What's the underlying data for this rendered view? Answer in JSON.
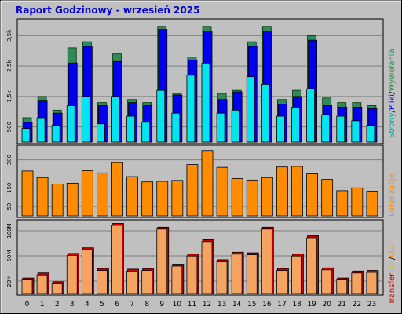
{
  "title": "Raport Godzinowy -  wrzesień 2025",
  "colors": {
    "background": "#c0c0c0",
    "panel": "#c0c0c0",
    "grid": "#808080",
    "strony": "#2e8b57",
    "pliki": "#0000ee",
    "wywolania": "#00e5ee",
    "lokalizacje": "#ff8c00",
    "transfer": "#ff7f00",
    "transfer_dark": "#cc0000"
  },
  "side_labels": {
    "top": [
      {
        "text": "Strony",
        "color": "#00aaaa"
      },
      {
        "text": "/",
        "color": "#000000"
      },
      {
        "text": "Pliki",
        "color": "#0000ee"
      },
      {
        "text": "/",
        "color": "#000000"
      },
      {
        "text": "Wywołania",
        "color": "#2e8b57"
      }
    ],
    "middle": [
      {
        "text": "Lokalizacje",
        "color": "#ff8c00"
      }
    ],
    "bottom": [
      {
        "text": "Transfer",
        "color": "#cc0000"
      },
      {
        "text": " IN ",
        "color": "#cccc00"
      },
      {
        "text": "/",
        "color": "#000000"
      },
      {
        "text": "OUT",
        "color": "#ff8c00"
      }
    ]
  },
  "chart_data": [
    {
      "type": "bar",
      "panel": "requests",
      "categories": [
        "0",
        "1",
        "2",
        "3",
        "4",
        "5",
        "6",
        "7",
        "8",
        "9",
        "10",
        "11",
        "12",
        "13",
        "14",
        "15",
        "16",
        "17",
        "18",
        "19",
        "20",
        "21",
        "22",
        "23"
      ],
      "y_ticks": [
        "500",
        "1,5k",
        "2,5k",
        "3,5k"
      ],
      "y_tick_values": [
        500,
        1500,
        2500,
        3500
      ],
      "ylim": [
        0,
        4000
      ],
      "series": [
        {
          "name": "Wywołania",
          "values": [
            800,
            1500,
            1050,
            3100,
            3300,
            1300,
            2900,
            1400,
            1300,
            3800,
            1600,
            2800,
            3800,
            1600,
            1700,
            3300,
            3800,
            1400,
            1700,
            3500,
            1450,
            1300,
            1300,
            1200
          ]
        },
        {
          "name": "Pliki",
          "values": [
            650,
            1350,
            950,
            2600,
            3150,
            1200,
            2650,
            1300,
            1200,
            3700,
            1550,
            2700,
            3650,
            1400,
            1650,
            3150,
            3650,
            1250,
            1500,
            3350,
            1200,
            1150,
            1150,
            1100
          ]
        },
        {
          "name": "Strony",
          "values": [
            450,
            800,
            550,
            1200,
            1500,
            600,
            1500,
            850,
            650,
            1700,
            950,
            2200,
            2600,
            950,
            1050,
            2150,
            1900,
            850,
            1150,
            1750,
            900,
            850,
            700,
            550
          ]
        }
      ]
    },
    {
      "type": "bar",
      "panel": "locations",
      "categories": [
        "0",
        "1",
        "2",
        "3",
        "4",
        "5",
        "6",
        "7",
        "8",
        "9",
        "10",
        "11",
        "12",
        "13",
        "14",
        "15",
        "16",
        "17",
        "18",
        "19",
        "20",
        "21",
        "22",
        "23"
      ],
      "y_ticks": [
        "50",
        "150",
        "300"
      ],
      "y_tick_values": [
        50,
        150,
        300
      ],
      "ylim": [
        0,
        370
      ],
      "series": [
        {
          "name": "Lokalizacje",
          "values": [
            240,
            205,
            170,
            175,
            242,
            230,
            285,
            210,
            182,
            185,
            190,
            275,
            350,
            260,
            200,
            192,
            205,
            262,
            265,
            225,
            195,
            135,
            150,
            132
          ]
        }
      ]
    },
    {
      "type": "bar",
      "panel": "transfer",
      "categories": [
        "0",
        "1",
        "2",
        "3",
        "4",
        "5",
        "6",
        "7",
        "8",
        "9",
        "10",
        "11",
        "12",
        "13",
        "14",
        "15",
        "16",
        "17",
        "18",
        "19",
        "20",
        "21",
        "22",
        "23"
      ],
      "y_ticks": [
        "20M",
        "60M",
        "100M"
      ],
      "y_tick_values": [
        20,
        60,
        100
      ],
      "ylim": [
        0,
        115
      ],
      "series": [
        {
          "name": "Transfer",
          "values": [
            23,
            31,
            17,
            62,
            71,
            38,
            110,
            37,
            38,
            104,
            45,
            61,
            84,
            52,
            64,
            63,
            104,
            38,
            61,
            90,
            39,
            23,
            34,
            35
          ]
        }
      ]
    }
  ]
}
